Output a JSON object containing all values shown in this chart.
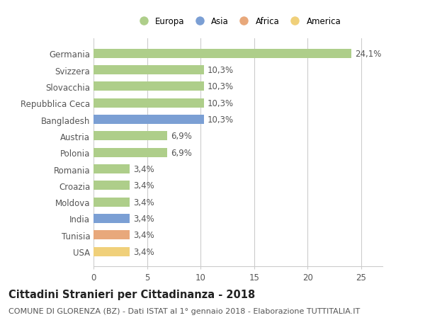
{
  "countries": [
    "Germania",
    "Svizzera",
    "Slovacchia",
    "Repubblica Ceca",
    "Bangladesh",
    "Austria",
    "Polonia",
    "Romania",
    "Croazia",
    "Moldova",
    "India",
    "Tunisia",
    "USA"
  ],
  "values": [
    24.1,
    10.3,
    10.3,
    10.3,
    10.3,
    6.9,
    6.9,
    3.4,
    3.4,
    3.4,
    3.4,
    3.4,
    3.4
  ],
  "labels": [
    "24,1%",
    "10,3%",
    "10,3%",
    "10,3%",
    "10,3%",
    "6,9%",
    "6,9%",
    "3,4%",
    "3,4%",
    "3,4%",
    "3,4%",
    "3,4%",
    "3,4%"
  ],
  "bar_colors": [
    "#aece8a",
    "#aece8a",
    "#aece8a",
    "#aece8a",
    "#7b9fd4",
    "#aece8a",
    "#aece8a",
    "#aece8a",
    "#aece8a",
    "#aece8a",
    "#7b9fd4",
    "#e8a87b",
    "#f0d07a"
  ],
  "legend_labels": [
    "Europa",
    "Asia",
    "Africa",
    "America"
  ],
  "legend_colors": [
    "#aece8a",
    "#7b9fd4",
    "#e8a87b",
    "#f0d07a"
  ],
  "title": "Cittadini Stranieri per Cittadinanza - 2018",
  "subtitle": "COMUNE DI GLORENZA (BZ) - Dati ISTAT al 1° gennaio 2018 - Elaborazione TUTTITALIA.IT",
  "xlim": [
    0,
    27
  ],
  "xticks": [
    0,
    5,
    10,
    15,
    20,
    25
  ],
  "background_color": "#ffffff",
  "bar_height": 0.55,
  "grid_color": "#cccccc",
  "label_fontsize": 8.5,
  "title_fontsize": 10.5,
  "subtitle_fontsize": 8,
  "text_color": "#555555",
  "title_color": "#222222"
}
